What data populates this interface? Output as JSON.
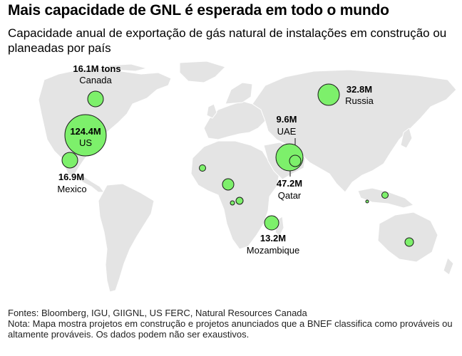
{
  "header": {
    "title": "Mais capacidade de GNL é esperada em todo o mundo",
    "subtitle": "Capacidade anual de exportação de gás natural de instalações em construção ou planeadas por país"
  },
  "colors": {
    "bubble_fill": "#7df06b",
    "bubble_stroke": "#1a1a1a",
    "land": "#e4e4e4",
    "border": "#ffffff"
  },
  "labels": {
    "canada": {
      "value": "16.1M tons",
      "name": "Canada"
    },
    "us": {
      "value": "124.4M",
      "name": "US"
    },
    "mexico": {
      "value": "16.9M",
      "name": "Mexico"
    },
    "russia": {
      "value": "32.8M",
      "name": "Russia"
    },
    "uae": {
      "value": "9.6M",
      "name": "UAE"
    },
    "qatar": {
      "value": "47.2M",
      "name": "Qatar"
    },
    "mozambique": {
      "value": "13.2M",
      "name": "Mozambique"
    }
  },
  "footer": {
    "sources": "Fontes: Bloomberg, IGU, GIIGNL, US FERC, Natural Resources Canada",
    "note": "Nota: Mapa mostra projetos em construção e projetos anunciados que a BNEF classifica como prováveis ou altamente prováveis. Os dados podem não ser exaustivos."
  }
}
